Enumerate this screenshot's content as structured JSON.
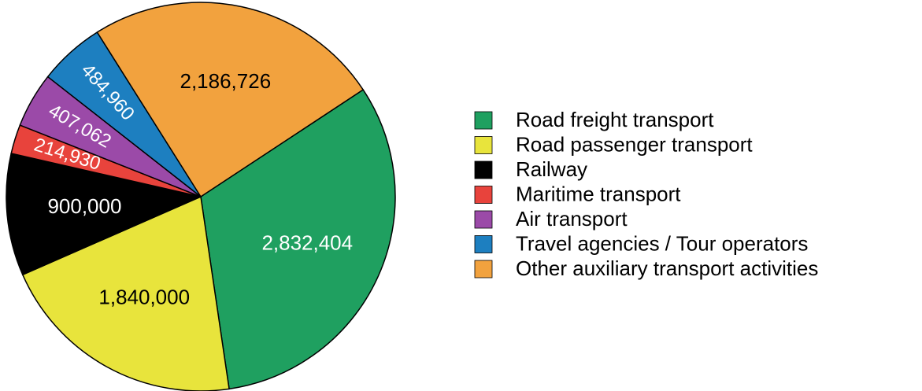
{
  "chart_data": {
    "type": "pie",
    "categories": [
      "Road freight transport",
      "Road passenger transport",
      "Railway",
      "Maritime transport",
      "Air transport",
      "Travel agencies / Tour operators",
      "Other auxiliary transport activities"
    ],
    "values": [
      2832404,
      1840000,
      900000,
      214930,
      407062,
      484960,
      2186726
    ],
    "value_labels": [
      "2,832,404",
      "1,840,000",
      "900,000",
      "214,930",
      "407,062",
      "484,960",
      "2,186,726"
    ],
    "colors": [
      "#1fa060",
      "#e8e43c",
      "#000000",
      "#e8433c",
      "#9b4aa8",
      "#1d7fc0",
      "#f2a23e"
    ],
    "legend": "right"
  }
}
